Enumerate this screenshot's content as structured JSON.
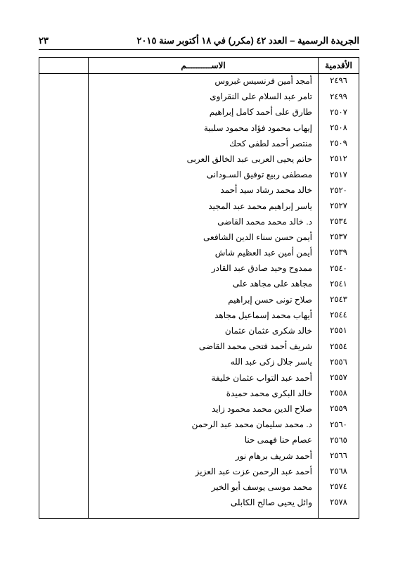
{
  "header": {
    "title": "الجريدة الرسمية – العدد ٤٢ (مكرر) في ١٨ أكتوبر سنة ٢٠١٥",
    "page_number": "٢٣"
  },
  "table": {
    "columns": {
      "seniority": "الأقدمية",
      "name": "الاســــــــــم",
      "empty": ""
    },
    "rows": [
      {
        "seniority": "٢٤٩٦",
        "name": "أمجد أمين فرنسيس غبروس"
      },
      {
        "seniority": "٢٤٩٩",
        "name": "تامر عبد السلام على النقراوى"
      },
      {
        "seniority": "٢٥٠٧",
        "name": "طارق على أحمد كامل إبراهيم"
      },
      {
        "seniority": "٢٥٠٨",
        "name": "إيهاب محمود فؤاد محمود سلبية"
      },
      {
        "seniority": "٢٥٠٩",
        "name": "منتصر أحمد لطفى كحك"
      },
      {
        "seniority": "٢٥١٢",
        "name": "حاتم يحيى العربى عبد الخالق العربى"
      },
      {
        "seniority": "٢٥١٧",
        "name": "مصطفى ربيع توفيق السـودانى"
      },
      {
        "seniority": "٢٥٢٠",
        "name": "خالد محمد رشاد سيد أحمد"
      },
      {
        "seniority": "٢٥٢٧",
        "name": "ياسر إبراهيم محمد عبد المجيد"
      },
      {
        "seniority": "٢٥٣٤",
        "name": "د. خالد محمد محمد القاضى"
      },
      {
        "seniority": "٢٥٣٧",
        "name": "أيمن حسن سناء الدين الشافعى"
      },
      {
        "seniority": "٢٥٣٩",
        "name": "أيمن أمين عبد العظيم شاش"
      },
      {
        "seniority": "٢٥٤٠",
        "name": "ممدوح وحيد صادق عبد القادر"
      },
      {
        "seniority": "٢٥٤١",
        "name": "مجاهد على مجاهد على"
      },
      {
        "seniority": "٢٥٤٣",
        "name": "صلاح تونى حسن إبراهيم"
      },
      {
        "seniority": "٢٥٤٤",
        "name": "أيهاب محمد إسماعيل مجاهد"
      },
      {
        "seniority": "٢٥٥١",
        "name": "خالد شكرى عثمان عثمان"
      },
      {
        "seniority": "٢٥٥٤",
        "name": "شريف أحمد فتحى محمد القاضى"
      },
      {
        "seniority": "٢٥٥٦",
        "name": "ياسر جلال زكى عبد الله"
      },
      {
        "seniority": "٢٥٥٧",
        "name": "أحمد عبد التواب عثمان خليفة"
      },
      {
        "seniority": "٢٥٥٨",
        "name": "خالد البكرى محمد حميدة"
      },
      {
        "seniority": "٢٥٥٩",
        "name": "صلاح الدين محمد محمود زايد"
      },
      {
        "seniority": "٢٥٦٠",
        "name": "د. محمد سليمان محمد عبد الرحمن"
      },
      {
        "seniority": "٢٥٦٥",
        "name": "عصام حنا فهمى حنا"
      },
      {
        "seniority": "٢٥٦٦",
        "name": "أحمد شريف برهام نور"
      },
      {
        "seniority": "٢٥٦٨",
        "name": "أحمد عبد الرحمن عزت عبد العزيز"
      },
      {
        "seniority": "٢٥٧٤",
        "name": "محمد موسى يوسف أبو الخير"
      },
      {
        "seniority": "٢٥٧٨",
        "name": "وائل يحيى صالح الكابلى"
      }
    ]
  }
}
